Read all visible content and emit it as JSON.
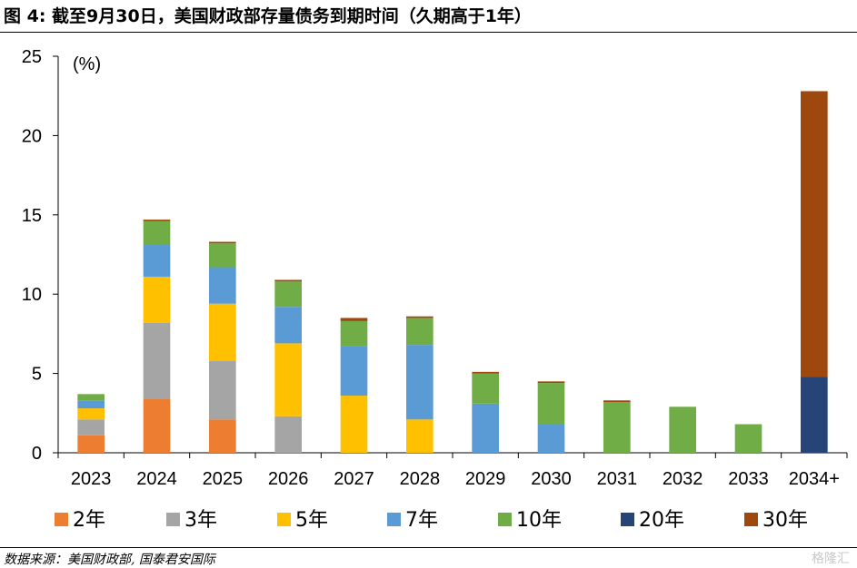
{
  "title": "图 4:  截至9月30日，美国财政部存量债务到期时间（久期高于1年）",
  "source": "数据来源：美国财政部, 国泰君安国际",
  "watermark": "格隆汇",
  "chart_data": {
    "type": "bar",
    "stacked": true,
    "unit_label": "(%)",
    "categories": [
      "2023",
      "2024",
      "2025",
      "2026",
      "2027",
      "2028",
      "2029",
      "2030",
      "2031",
      "2032",
      "2033",
      "2034+"
    ],
    "ylim": [
      0,
      25
    ],
    "yticks": [
      0,
      5,
      10,
      15,
      20,
      25
    ],
    "legend_position": "bottom",
    "grid": false,
    "series": [
      {
        "name": "2年",
        "color": "#ED7D31",
        "values": [
          1.1,
          3.4,
          2.1,
          0,
          0,
          0,
          0,
          0,
          0,
          0,
          0,
          0
        ]
      },
      {
        "name": "3年",
        "color": "#A5A5A5",
        "values": [
          1.0,
          4.8,
          3.7,
          2.3,
          0,
          0,
          0,
          0,
          0,
          0,
          0,
          0
        ]
      },
      {
        "name": "5年",
        "color": "#FFC000",
        "values": [
          0.7,
          2.9,
          3.6,
          4.6,
          3.6,
          2.1,
          0,
          0,
          0,
          0,
          0,
          0
        ]
      },
      {
        "name": "7年",
        "color": "#5B9BD5",
        "values": [
          0.5,
          2.0,
          2.3,
          2.3,
          3.1,
          4.7,
          3.1,
          1.8,
          0,
          0,
          0,
          0
        ]
      },
      {
        "name": "10年",
        "color": "#70AD47",
        "values": [
          0.4,
          1.5,
          1.5,
          1.6,
          1.6,
          1.7,
          1.9,
          2.6,
          3.2,
          2.9,
          1.8,
          0
        ]
      },
      {
        "name": "20年",
        "color": "#264478",
        "values": [
          0,
          0,
          0,
          0,
          0,
          0,
          0,
          0,
          0,
          0,
          0,
          4.8
        ]
      },
      {
        "name": "30年",
        "color": "#9E480E",
        "values": [
          0,
          0.1,
          0.1,
          0.1,
          0.2,
          0.1,
          0.1,
          0.1,
          0.1,
          0,
          0,
          18.0
        ]
      }
    ]
  }
}
